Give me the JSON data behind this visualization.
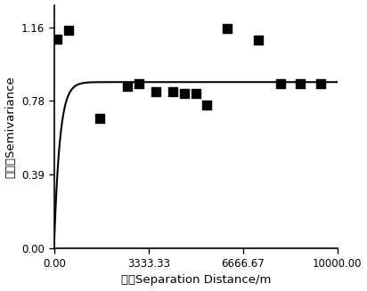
{
  "scatter_x": [
    100,
    500,
    1600,
    2600,
    3000,
    3600,
    4200,
    4600,
    5000,
    5400,
    6100,
    7200,
    8000,
    8700,
    9400
  ],
  "scatter_y": [
    1.1,
    1.145,
    0.685,
    0.855,
    0.865,
    0.825,
    0.825,
    0.815,
    0.815,
    0.755,
    1.155,
    1.095,
    0.865,
    0.865,
    0.865
  ],
  "nugget": 0.02,
  "sill": 0.875,
  "range_param": 600,
  "xlim": [
    0,
    10000
  ],
  "ylim": [
    0.0,
    1.28
  ],
  "xticks": [
    0.0,
    3333.33,
    6666.67,
    10000.0
  ],
  "xtick_labels": [
    "0.00",
    "3333.33",
    "6666.67",
    "10000.00"
  ],
  "yticks": [
    0.0,
    0.39,
    0.78,
    1.16
  ],
  "ytick_labels": [
    "0.00",
    "0.39",
    "0.78",
    "1.16"
  ],
  "xlabel": "步长Separation Distance/m",
  "ylabel": "半方差Semivariance",
  "marker_color": "black",
  "line_color": "black",
  "bg_color": "white",
  "marker_size": 7,
  "tick_fontsize": 8.5,
  "label_fontsize": 9.5
}
